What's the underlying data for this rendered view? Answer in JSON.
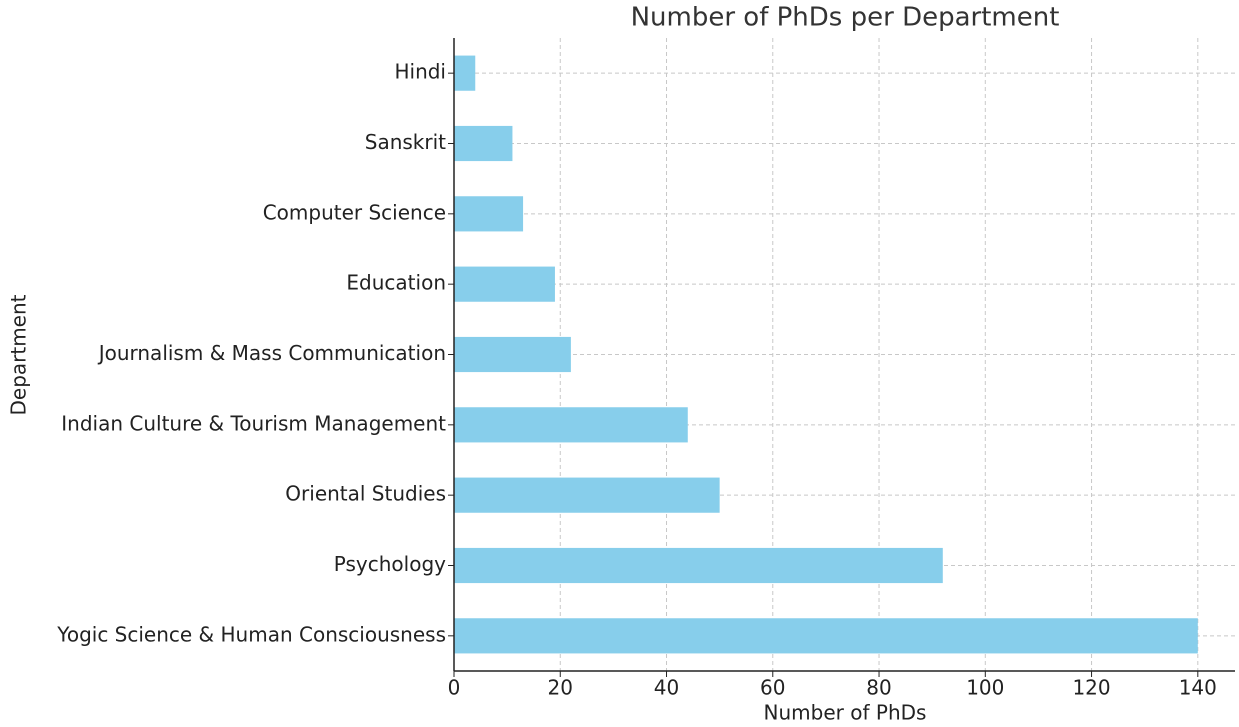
{
  "chart_data": {
    "type": "barh",
    "title": "Number of PhDs per Department",
    "xlabel": "Number of PhDs",
    "ylabel": "Department",
    "categories": [
      "Yogic Science & Human Consciousness",
      "Psychology",
      "Oriental Studies",
      "Indian Culture & Tourism Management",
      "Journalism & Mass Communication",
      "Education",
      "Computer Science",
      "Sanskrit",
      "Hindi"
    ],
    "values": [
      140,
      92,
      50,
      44,
      22,
      19,
      13,
      11,
      4
    ],
    "color": "#87ceeb",
    "xlim": [
      0,
      147
    ],
    "xticks": [
      0,
      20,
      40,
      60,
      80,
      100,
      120,
      140
    ],
    "grid": true
  }
}
